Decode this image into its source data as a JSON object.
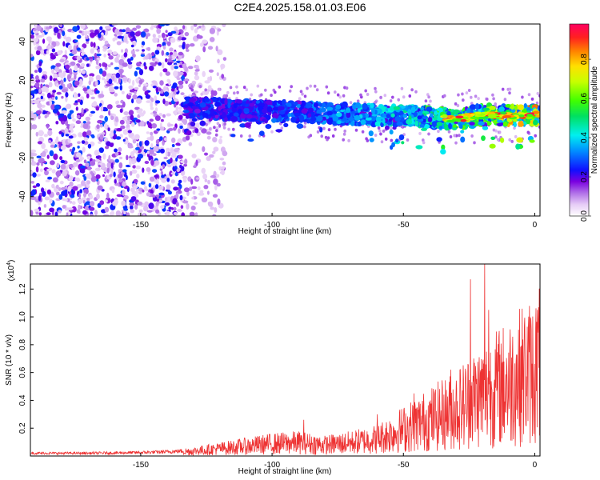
{
  "figure_title": "C2E4.2025.158.01.03.E06",
  "chart_data": [
    {
      "type": "heatmap",
      "xlabel": "Height of straight line (km)",
      "ylabel": "Frequency (Hz)",
      "xlim": [
        -192,
        2
      ],
      "ylim": [
        -50,
        49
      ],
      "xticks": [
        -150,
        -100,
        -50,
        0
      ],
      "yticks": [
        -40,
        -20,
        0,
        20,
        40
      ],
      "colorbar": {
        "label": "Normalized spectral amplitude",
        "range": [
          0,
          0.98
        ],
        "ticks": [
          0.0,
          0.2,
          0.4,
          0.6,
          0.8
        ],
        "tick_labels": [
          "0.0",
          "0.2",
          "0.4",
          "0.6",
          "0.8"
        ]
      },
      "regions": [
        {
          "x_range": [
            -192,
            -133
          ],
          "y_range": [
            -50,
            49
          ],
          "amplitude": [
            0.05,
            0.3
          ],
          "kind": "noise"
        },
        {
          "x_range": [
            -133,
            -118
          ],
          "y_range": [
            -50,
            49
          ],
          "amplitude": [
            0.05,
            0.15
          ],
          "kind": "sparse-noise"
        },
        {
          "x_range": [
            -133,
            2
          ],
          "y_range": [
            -5,
            8
          ],
          "amplitude": [
            0.2,
            0.98
          ],
          "kind": "signal-band"
        }
      ],
      "signal_band_center": [
        [
          -133,
          6
        ],
        [
          -120,
          5
        ],
        [
          -100,
          4
        ],
        [
          -80,
          3
        ],
        [
          -60,
          2
        ],
        [
          -50,
          2
        ],
        [
          -40,
          1
        ],
        [
          -30,
          0
        ],
        [
          -20,
          2
        ],
        [
          -10,
          2
        ],
        [
          0,
          2
        ]
      ],
      "grid": false
    },
    {
      "type": "line",
      "xlabel": "Height of straight line (km)",
      "ylabel": "SNR (10 * v/v)",
      "y_multiplier": "(x10",
      "y_multiplier_exp": "4",
      "y_multiplier_close": ")",
      "xlim": [
        -192,
        2
      ],
      "ylim": [
        0,
        1.38
      ],
      "xticks": [
        -150,
        -100,
        -50,
        0
      ],
      "yticks": [
        0.2,
        0.4,
        0.6,
        0.8,
        1.0,
        1.2
      ],
      "series": [
        {
          "color": "#ee3333",
          "x": [
            -192,
            -170,
            -150,
            -140,
            -130,
            -120,
            -110,
            -100,
            -90,
            -80,
            -70,
            -60,
            -50,
            -40,
            -30,
            -25,
            -20,
            -15,
            -10,
            -5,
            0,
            2
          ],
          "y": [
            0.02,
            0.02,
            0.025,
            0.03,
            0.04,
            0.06,
            0.08,
            0.1,
            0.11,
            0.09,
            0.11,
            0.14,
            0.22,
            0.3,
            0.38,
            0.45,
            0.5,
            0.55,
            0.6,
            0.66,
            0.7,
            0.75
          ],
          "peaks": [
            {
              "x": -24.5,
              "y": 1.27
            },
            {
              "x": -19,
              "y": 1.38
            },
            {
              "x": -17.5,
              "y": 1.05
            },
            {
              "x": 1,
              "y": 1.05
            },
            {
              "x": -88,
              "y": 0.26
            },
            {
              "x": -60,
              "y": 0.3
            },
            {
              "x": -46,
              "y": 0.45
            },
            {
              "x": -32,
              "y": 0.62
            }
          ]
        }
      ],
      "grid": false
    }
  ]
}
